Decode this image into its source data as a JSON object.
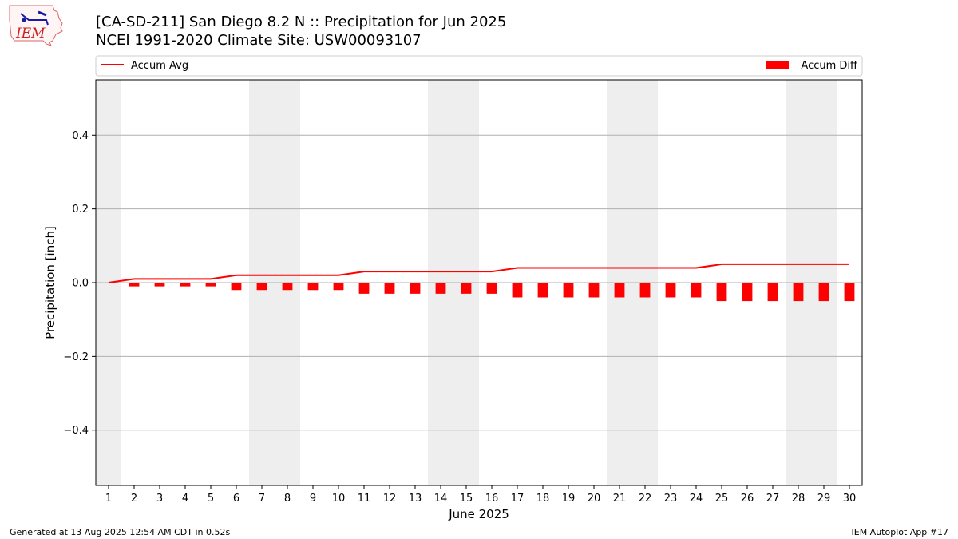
{
  "header": {
    "title_line_1": "[CA-SD-211] San Diego 8.2 N :: Precipitation for Jun 2025",
    "title_line_2": "NCEI 1991-2020 Climate Site: USW00093107"
  },
  "logo": {
    "text": "IEM"
  },
  "footer": {
    "left": "Generated at 13 Aug 2025 12:54 AM CDT in 0.52s",
    "right": "IEM Autoplot App #17"
  },
  "colors": {
    "accent": "#ff0000",
    "weekend_band": "#eeeeee",
    "grid": "#b0b0b0"
  },
  "chart_data": {
    "type": "bar",
    "xlabel": "June 2025",
    "ylabel": "Precipitation [inch]",
    "ylim": [
      -0.55,
      0.55
    ],
    "yticks": [
      0.4,
      0.2,
      0.0,
      -0.2,
      -0.4
    ],
    "ytick_labels": [
      "0.4",
      "0.2",
      "0.0",
      "−0.2",
      "−0.4"
    ],
    "grid": true,
    "legend_left": "top-left",
    "legend_right": "top-right",
    "days": [
      1,
      2,
      3,
      4,
      5,
      6,
      7,
      8,
      9,
      10,
      11,
      12,
      13,
      14,
      15,
      16,
      17,
      18,
      19,
      20,
      21,
      22,
      23,
      24,
      25,
      26,
      27,
      28,
      29,
      30
    ],
    "weekend_days": [
      1,
      7,
      8,
      14,
      15,
      21,
      22,
      28,
      29
    ],
    "series": [
      {
        "name": "Accum Avg",
        "kind": "line",
        "values": [
          0.0,
          0.01,
          0.01,
          0.01,
          0.01,
          0.02,
          0.02,
          0.02,
          0.02,
          0.02,
          0.03,
          0.03,
          0.03,
          0.03,
          0.03,
          0.03,
          0.04,
          0.04,
          0.04,
          0.04,
          0.04,
          0.04,
          0.04,
          0.04,
          0.05,
          0.05,
          0.05,
          0.05,
          0.05,
          0.05
        ]
      },
      {
        "name": "Accum Diff",
        "kind": "bar",
        "values": [
          0.0,
          -0.01,
          -0.01,
          -0.01,
          -0.01,
          -0.02,
          -0.02,
          -0.02,
          -0.02,
          -0.02,
          -0.03,
          -0.03,
          -0.03,
          -0.03,
          -0.03,
          -0.03,
          -0.04,
          -0.04,
          -0.04,
          -0.04,
          -0.04,
          -0.04,
          -0.04,
          -0.04,
          -0.05,
          -0.05,
          -0.05,
          -0.05,
          -0.05,
          -0.05
        ]
      }
    ]
  }
}
